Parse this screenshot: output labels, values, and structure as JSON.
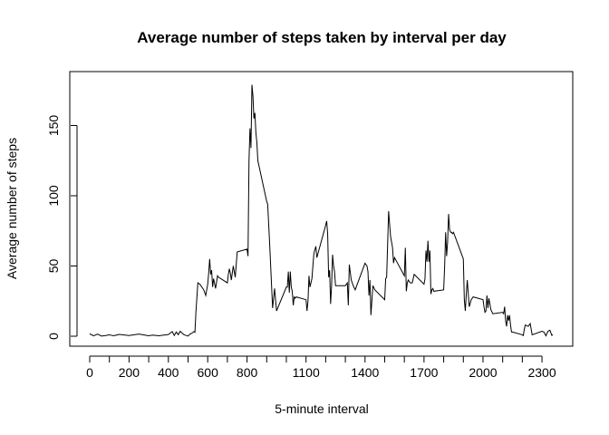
{
  "chart_data": {
    "type": "line",
    "title": "Average number of steps taken by interval per day",
    "xlabel": "5-minute interval",
    "ylabel": "Average number of steps",
    "xlim": [
      0,
      2355
    ],
    "ylim": [
      0,
      180
    ],
    "x_ticks": [
      0,
      100,
      200,
      300,
      400,
      500,
      600,
      700,
      800,
      900,
      1000,
      1100,
      1200,
      1300,
      1400,
      1500,
      1600,
      1700,
      1800,
      1900,
      2000,
      2100,
      2200,
      2300
    ],
    "x_tick_labels": [
      "0",
      "",
      "200",
      "",
      "400",
      "",
      "600",
      "",
      "800",
      "",
      "",
      "1100",
      "",
      "",
      "1400",
      "",
      "",
      "1700",
      "",
      "",
      "2000",
      "",
      "",
      "2300"
    ],
    "y_ticks": [
      0,
      50,
      100,
      150
    ],
    "y_tick_labels": [
      "0",
      "50",
      "100",
      "150"
    ],
    "grid": false,
    "legend": "none",
    "series": [
      {
        "color": "#000000",
        "x": [
          0,
          20,
          40,
          60,
          80,
          100,
          120,
          150,
          200,
          250,
          300,
          320,
          350,
          400,
          420,
          430,
          440,
          450,
          460,
          480,
          500,
          510,
          520,
          530,
          535,
          540,
          550,
          560,
          580,
          590,
          600,
          605,
          610,
          615,
          620,
          625,
          630,
          640,
          650,
          655,
          700,
          705,
          710,
          715,
          720,
          730,
          740,
          750,
          800,
          805,
          810,
          815,
          820,
          825,
          830,
          835,
          840,
          845,
          850,
          855,
          900,
          905,
          915,
          930,
          940,
          950,
          1000,
          1005,
          1010,
          1015,
          1020,
          1025,
          1030,
          1035,
          1040,
          1045,
          1050,
          1100,
          1105,
          1110,
          1115,
          1120,
          1130,
          1140,
          1150,
          1155,
          1200,
          1205,
          1210,
          1215,
          1220,
          1225,
          1230,
          1235,
          1240,
          1245,
          1250,
          1300,
          1310,
          1315,
          1320,
          1330,
          1340,
          1350,
          1400,
          1410,
          1415,
          1420,
          1425,
          1430,
          1440,
          1450,
          1500,
          1505,
          1510,
          1520,
          1530,
          1540,
          1545,
          1550,
          1600,
          1605,
          1610,
          1615,
          1620,
          1630,
          1640,
          1645,
          1650,
          1700,
          1705,
          1710,
          1715,
          1720,
          1725,
          1730,
          1735,
          1740,
          1745,
          1750,
          1800,
          1805,
          1810,
          1815,
          1820,
          1825,
          1830,
          1835,
          1840,
          1845,
          1850,
          1900,
          1905,
          1910,
          1915,
          1920,
          1930,
          1940,
          1950,
          2000,
          2005,
          2010,
          2015,
          2020,
          2025,
          2030,
          2040,
          2050,
          2100,
          2105,
          2110,
          2115,
          2120,
          2125,
          2130,
          2135,
          2140,
          2145,
          2150,
          2200,
          2205,
          2210,
          2215,
          2230,
          2240,
          2250,
          2300,
          2310,
          2320,
          2330,
          2340,
          2350,
          2355
        ],
        "y": [
          1.7,
          0.3,
          1.5,
          0.1,
          0.5,
          1.0,
          0.3,
          1.3,
          0.5,
          1.5,
          0.3,
          0.8,
          0.3,
          1.2,
          3.3,
          0.5,
          3.0,
          1.1,
          3.5,
          1.0,
          0.1,
          1.5,
          2.2,
          3.3,
          2.8,
          17.0,
          38.0,
          37.0,
          33.0,
          29.0,
          37.0,
          45.0,
          55.0,
          44.0,
          47.0,
          35.0,
          41.0,
          34.0,
          43.0,
          42.0,
          38.0,
          44.0,
          48.0,
          45.0,
          40.0,
          50.0,
          42.0,
          60.0,
          62.0,
          57.0,
          125.0,
          148.0,
          134.0,
          179.0,
          171.0,
          155.0,
          159.0,
          145.0,
          138.0,
          125.0,
          96.0,
          94.0,
          66.0,
          20.0,
          34.0,
          18.0,
          35.0,
          35.0,
          46.0,
          31.0,
          46.0,
          35.0,
          32.0,
          22.0,
          28.0,
          27.0,
          28.0,
          26.0,
          18.0,
          25.0,
          43.0,
          35.0,
          41.0,
          59.0,
          64.0,
          56.0,
          79.0,
          82.0,
          73.0,
          42.0,
          47.0,
          23.0,
          36.0,
          58.0,
          50.0,
          46.0,
          36.0,
          36.0,
          38.0,
          22.0,
          51.0,
          40.0,
          36.0,
          33.0,
          52.0,
          50.0,
          46.0,
          29.0,
          40.0,
          15.0,
          36.0,
          33.0,
          26.0,
          41.0,
          42.0,
          89.0,
          71.0,
          63.0,
          52.0,
          56.0,
          43.0,
          63.0,
          32.0,
          38.0,
          40.0,
          38.0,
          38.0,
          41.0,
          44.0,
          37.0,
          41.0,
          61.0,
          53.0,
          68.0,
          53.0,
          61.0,
          30.0,
          33.0,
          34.0,
          32.0,
          33.0,
          50.0,
          74.0,
          57.0,
          67.0,
          87.0,
          76.0,
          74.0,
          74.0,
          73.0,
          74.0,
          55.0,
          26.0,
          18.0,
          30.0,
          40.0,
          21.0,
          26.0,
          28.0,
          26.0,
          21.0,
          17.0,
          18.0,
          29.0,
          20.0,
          27.0,
          19.0,
          16.0,
          17.0,
          16.0,
          21.0,
          11.0,
          7.0,
          15.0,
          11.0,
          15.0,
          8.0,
          3.0,
          3.0,
          1.0,
          0.5,
          5.0,
          8.0,
          7.0,
          9.0,
          1.0,
          3.5,
          3.0,
          0.3,
          3.5,
          4.3,
          0.6,
          1.1
        ]
      }
    ]
  }
}
